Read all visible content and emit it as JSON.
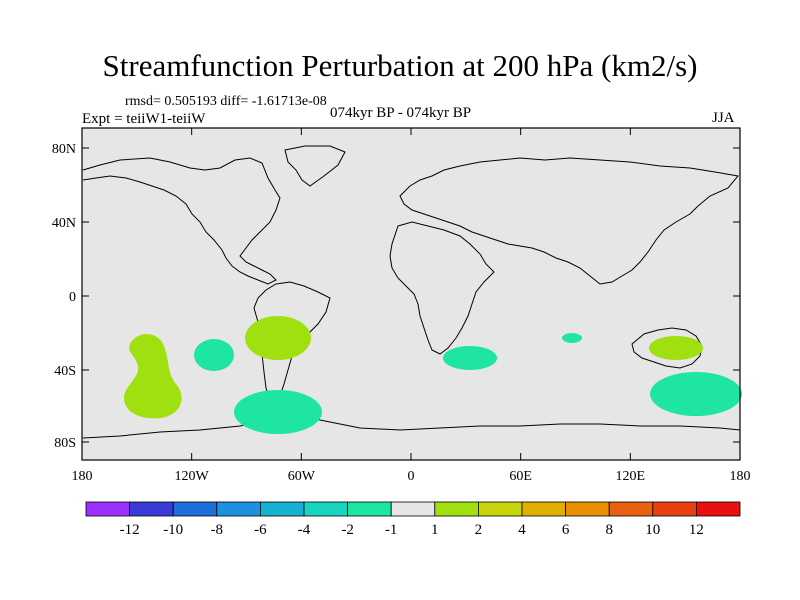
{
  "title": "Streamfunction Perturbation at 200 hPa (km2/s)",
  "stats": "rmsd= 0.505193 diff= -1.61713e-08",
  "experiment": "Expt = teiiW1-teiiW",
  "period": "074kyr BP - 074kyr BP",
  "season": "JJA",
  "map": {
    "background_color": "#e6e6e6",
    "lat_ticks": [
      "80N",
      "40N",
      "0",
      "40S",
      "80S"
    ],
    "lon_ticks": [
      "180",
      "120W",
      "60W",
      "0",
      "60E",
      "120E",
      "180"
    ]
  },
  "colorbar": {
    "levels": [
      "-12",
      "-10",
      "-8",
      "-6",
      "-4",
      "-2",
      "-1",
      "1",
      "2",
      "4",
      "6",
      "8",
      "10",
      "12"
    ],
    "colors": [
      "#9b30ff",
      "#3a3ad6",
      "#1e6fd9",
      "#1e90e0",
      "#16b0d0",
      "#19d4c0",
      "#1ee6a0",
      "#e6e6e6",
      "#a0e010",
      "#c8d40c",
      "#e0b000",
      "#e89000",
      "#e86010",
      "#e84010",
      "#e81010"
    ]
  },
  "anomalies": [
    {
      "label": "south-pacific-negative",
      "color": "#1ee6a0"
    },
    {
      "label": "south-pacific-positive",
      "color": "#a0e010"
    },
    {
      "label": "south-america-positive",
      "color": "#a0e010"
    },
    {
      "label": "drake-passage-negative",
      "color": "#1ee6a0"
    },
    {
      "label": "south-africa-negative",
      "color": "#1ee6a0"
    },
    {
      "label": "indian-ocean-negative",
      "color": "#1ee6a0"
    },
    {
      "label": "australia-positive",
      "color": "#a0e010"
    },
    {
      "label": "tasman-sea-negative",
      "color": "#1ee6a0"
    }
  ]
}
